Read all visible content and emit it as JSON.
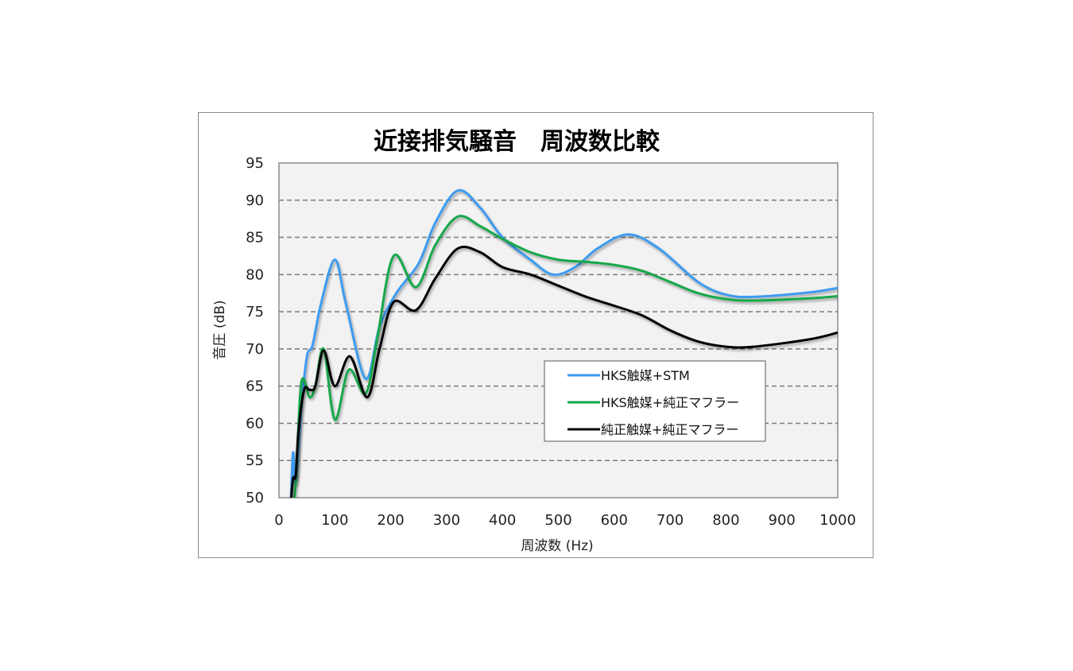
{
  "chart_data": {
    "type": "line",
    "title": "近接排気騒音　周波数比較",
    "xlabel": "周波数 (Hz)",
    "ylabel": "音圧 (dB)",
    "xlim": [
      0,
      1000
    ],
    "ylim": [
      50,
      95
    ],
    "xticks": [
      0,
      100,
      200,
      300,
      400,
      500,
      600,
      700,
      800,
      900,
      1000
    ],
    "yticks": [
      50,
      55,
      60,
      65,
      70,
      75,
      80,
      85,
      90,
      95
    ],
    "grid": "horizontal dashed",
    "legend_position": "inside lower-right",
    "plot_background": "#f2f2f2",
    "series": [
      {
        "name": "HKS触媒+STM",
        "color": "#3c9bf0",
        "x": [
          20,
          25,
          30,
          40,
          50,
          60,
          75,
          100,
          120,
          155,
          180,
          210,
          250,
          280,
          320,
          360,
          400,
          450,
          490,
          530,
          570,
          625,
          680,
          750,
          800,
          850,
          950,
          1000
        ],
        "y": [
          46,
          56,
          52,
          62,
          69,
          70.5,
          76,
          82,
          76,
          66,
          73,
          77.5,
          81.5,
          87,
          91.3,
          89,
          85,
          82,
          80,
          81,
          83.5,
          85.4,
          83.5,
          79,
          77.3,
          77,
          77.6,
          78.2
        ]
      },
      {
        "name": "HKS触媒+純正マフラー",
        "color": "#12a84a",
        "x": [
          20,
          30,
          40,
          55,
          65,
          80,
          100,
          125,
          155,
          175,
          205,
          245,
          280,
          320,
          360,
          400,
          450,
          500,
          550,
          600,
          650,
          700,
          750,
          800,
          850,
          950,
          1000
        ],
        "y": [
          45,
          52,
          65.5,
          63.5,
          65,
          70,
          60.5,
          67.2,
          64,
          71,
          82.5,
          78.3,
          84,
          87.8,
          86.5,
          84.8,
          83,
          82,
          81.7,
          81.3,
          80.5,
          79,
          77.5,
          76.7,
          76.5,
          76.8,
          77.1
        ]
      },
      {
        "name": "純正触媒+純正マフラー",
        "color": "#000000",
        "x": [
          20,
          25,
          30,
          35,
          45,
          55,
          65,
          80,
          100,
          127,
          158,
          180,
          205,
          245,
          280,
          320,
          360,
          400,
          450,
          500,
          550,
          600,
          650,
          700,
          750,
          800,
          850,
          950,
          1000
        ],
        "y": [
          48,
          52.5,
          53,
          59,
          64.5,
          64.5,
          65,
          69.8,
          65,
          69,
          63.5,
          70,
          76.3,
          75.2,
          79.5,
          83.5,
          83,
          81,
          80,
          78.5,
          77,
          75.8,
          74.5,
          72.5,
          71,
          70.3,
          70.3,
          71.3,
          72.2
        ]
      }
    ]
  }
}
